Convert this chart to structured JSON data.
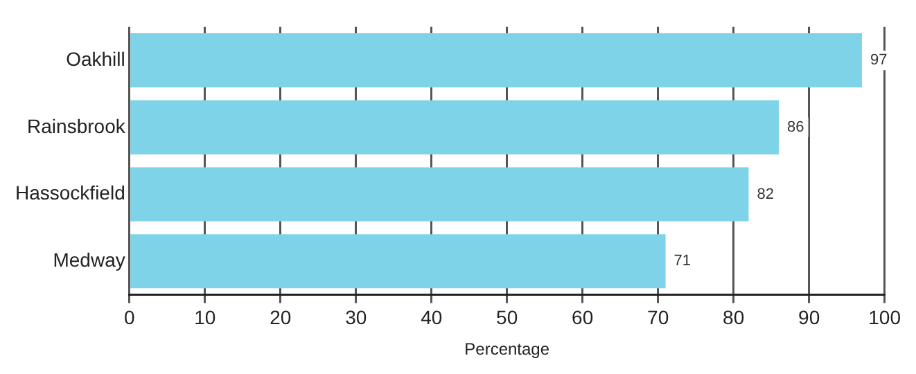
{
  "chart_data": {
    "type": "bar",
    "orientation": "horizontal",
    "xlabel": "Percentage",
    "categories": [
      "Oakhill",
      "Rainsbrook",
      "Hassockfield",
      "Medway"
    ],
    "values": [
      97,
      86,
      82,
      71
    ],
    "color": "#7fd3e8",
    "data_labels": true,
    "xlim": [
      0,
      100
    ],
    "xticks": [
      0,
      10,
      20,
      30,
      40,
      50,
      60,
      70,
      80,
      90,
      100
    ],
    "grid": "x",
    "legend": false
  }
}
